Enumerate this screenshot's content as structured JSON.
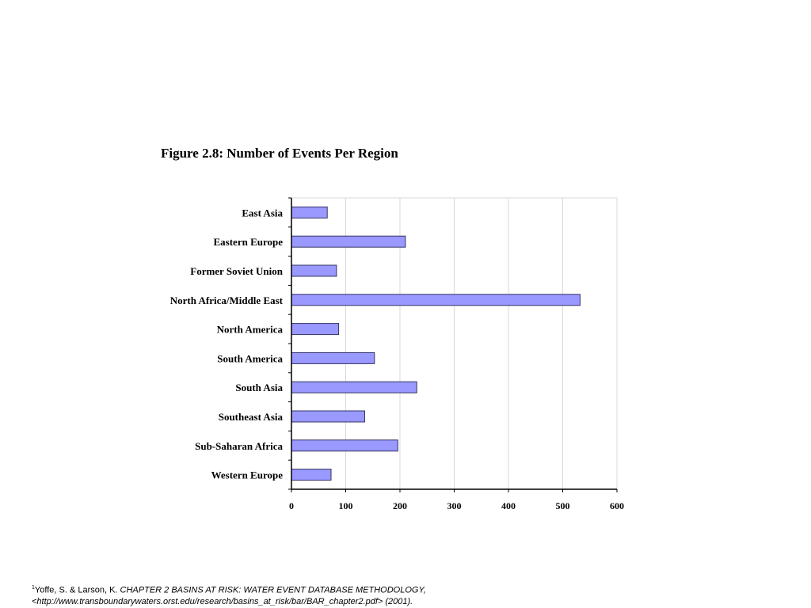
{
  "chart_data": {
    "type": "bar",
    "orientation": "horizontal",
    "title": "Figure 2.8: Number of Events Per Region",
    "categories": [
      "East Asia",
      "Eastern Europe",
      "Former Soviet Union",
      "North Africa/Middle East",
      "North America",
      "South America",
      "South Asia",
      "Southeast Asia",
      "Sub-Saharan Africa",
      "Western Europe"
    ],
    "values": [
      66,
      210,
      83,
      532,
      87,
      153,
      231,
      135,
      196,
      73
    ],
    "xlim": [
      0,
      600
    ],
    "x_ticks": [
      "0",
      "100",
      "200",
      "300",
      "400",
      "500",
      "600"
    ],
    "grid": "vertical gridlines",
    "colors": {
      "bar_fill": "#9999ff",
      "bar_stroke": "#333366",
      "grid": "#d9d9d9"
    }
  },
  "footnote": {
    "marker": "1",
    "authors": "Yoffe, S. & Larson, K. ",
    "title": "CHAPTER 2 BASINS AT RISK: WATER EVENT DATABASE METHODOLOGY,",
    "source": "<http://www.transboundarywaters.orst.edu/research/basins_at_risk/bar/BAR_chapter2.pdf> (2001)."
  }
}
